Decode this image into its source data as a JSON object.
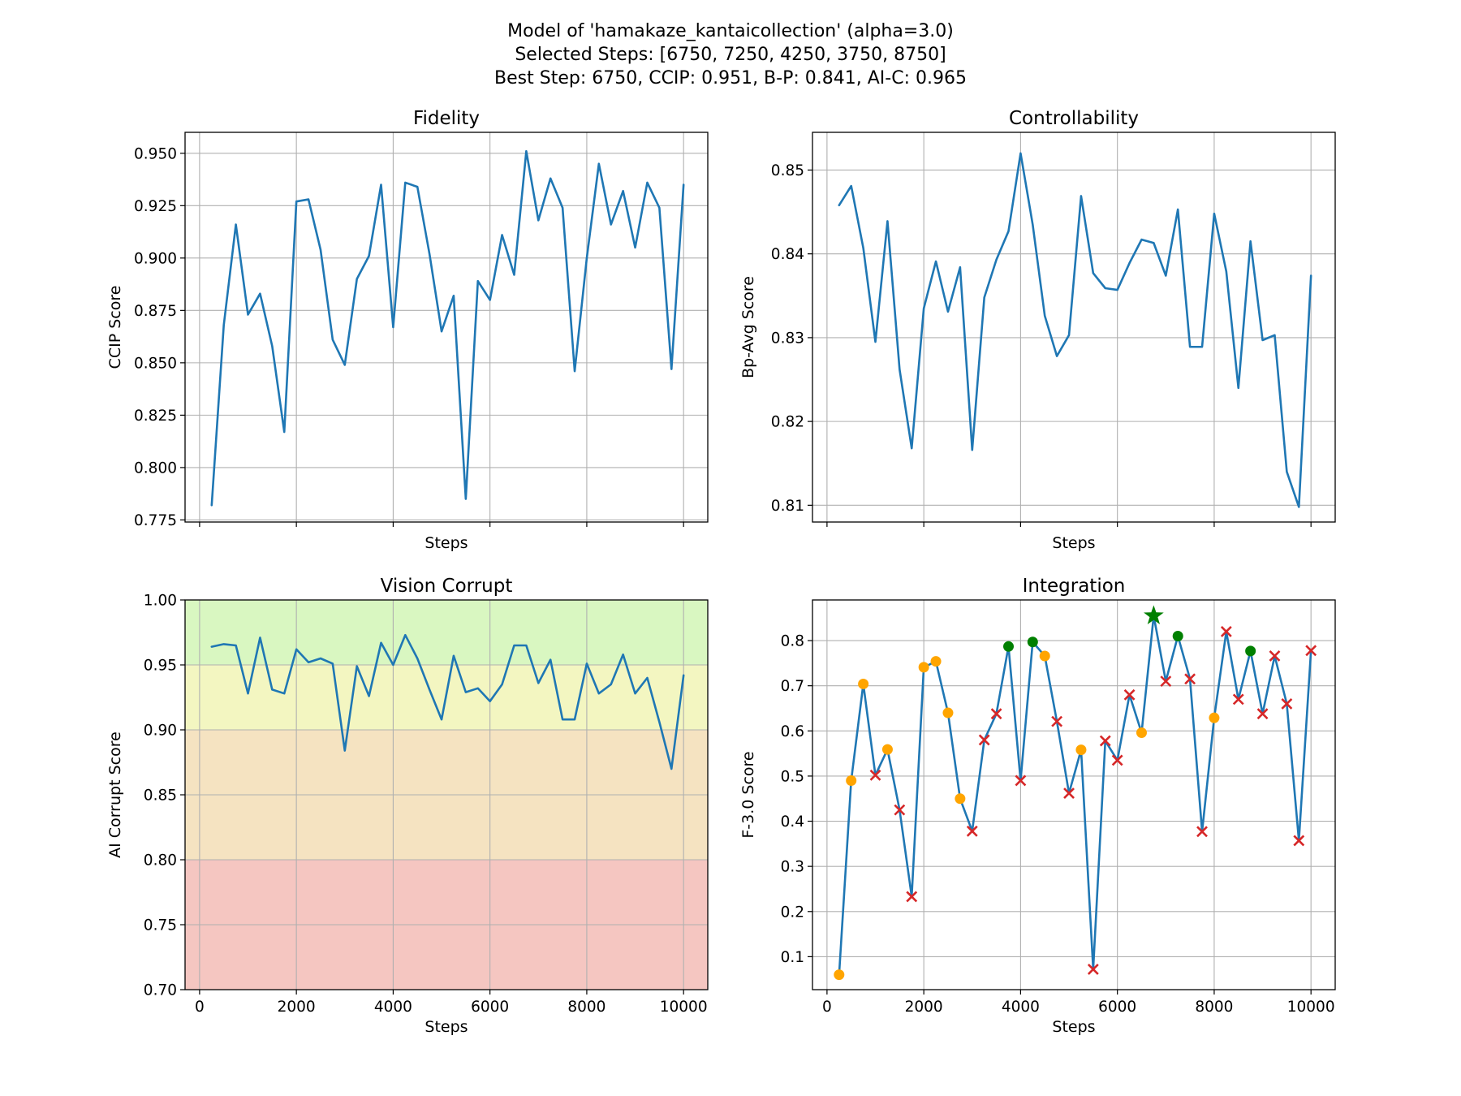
{
  "figure": {
    "title_lines": [
      "Model of 'hamakaze_kantaicollection' (alpha=3.0)",
      "Selected Steps: [6750, 7250, 4250, 3750, 8750]",
      "Best Step: 6750, CCIP: 0.951, B-P: 0.841, AI-C: 0.965"
    ]
  },
  "colors": {
    "line": "#1f77b4",
    "grid": "#b0b0b0",
    "marker_orange": "#ffa500",
    "marker_green": "#008000",
    "marker_red": "#d62728",
    "band_green": "#d9f7c1",
    "band_yellow": "#f3f6c1",
    "band_orange": "#f5e3c1",
    "band_red": "#f5c6c1"
  },
  "chart_data": [
    {
      "id": "fidelity",
      "type": "line",
      "title": "Fidelity",
      "xlabel": "Steps",
      "ylabel": "CCIP Score",
      "xlim": [
        -300,
        10500
      ],
      "ylim": [
        0.774,
        0.96
      ],
      "xticks": [
        0,
        2000,
        4000,
        6000,
        8000,
        10000
      ],
      "show_xtick_labels": false,
      "yticks": [
        0.775,
        0.8,
        0.825,
        0.85,
        0.875,
        0.9,
        0.925,
        0.95
      ],
      "ytick_labels": [
        "0.775",
        "0.800",
        "0.825",
        "0.850",
        "0.875",
        "0.900",
        "0.925",
        "0.950"
      ],
      "grid": true,
      "x": [
        250,
        500,
        750,
        1000,
        1250,
        1500,
        1750,
        2000,
        2250,
        2500,
        2750,
        3000,
        3250,
        3500,
        3750,
        4000,
        4250,
        4500,
        4750,
        5000,
        5250,
        5500,
        5750,
        6000,
        6250,
        6500,
        6750,
        7000,
        7250,
        7500,
        7750,
        8000,
        8250,
        8500,
        8750,
        9000,
        9250,
        9500,
        9750,
        10000
      ],
      "y": [
        0.782,
        0.868,
        0.916,
        0.873,
        0.883,
        0.858,
        0.817,
        0.927,
        0.928,
        0.904,
        0.861,
        0.849,
        0.89,
        0.901,
        0.935,
        0.867,
        0.936,
        0.934,
        0.902,
        0.865,
        0.882,
        0.785,
        0.889,
        0.88,
        0.911,
        0.892,
        0.951,
        0.918,
        0.938,
        0.924,
        0.846,
        0.9,
        0.945,
        0.916,
        0.932,
        0.905,
        0.936,
        0.924,
        0.847,
        0.935
      ]
    },
    {
      "id": "controllability",
      "type": "line",
      "title": "Controllability",
      "xlabel": "Steps",
      "ylabel": "Bp-Avg Score",
      "xlim": [
        -300,
        10500
      ],
      "ylim": [
        0.808,
        0.8545
      ],
      "xticks": [
        0,
        2000,
        4000,
        6000,
        8000,
        10000
      ],
      "show_xtick_labels": false,
      "yticks": [
        0.81,
        0.82,
        0.83,
        0.84,
        0.85
      ],
      "ytick_labels": [
        "0.81",
        "0.82",
        "0.83",
        "0.84",
        "0.85"
      ],
      "grid": true,
      "x": [
        250,
        500,
        750,
        1000,
        1250,
        1500,
        1750,
        2000,
        2250,
        2500,
        2750,
        3000,
        3250,
        3500,
        3750,
        4000,
        4250,
        4500,
        4750,
        5000,
        5250,
        5500,
        5750,
        6000,
        6250,
        6500,
        6750,
        7000,
        7250,
        7500,
        7750,
        8000,
        8250,
        8500,
        8750,
        9000,
        9250,
        9500,
        9750,
        10000
      ],
      "y": [
        0.8458,
        0.8481,
        0.8407,
        0.8295,
        0.8439,
        0.8262,
        0.8168,
        0.8335,
        0.8391,
        0.8331,
        0.8384,
        0.8166,
        0.8348,
        0.8393,
        0.8427,
        0.852,
        0.8435,
        0.8326,
        0.8278,
        0.8303,
        0.8469,
        0.8377,
        0.8359,
        0.8357,
        0.8389,
        0.8417,
        0.8413,
        0.8374,
        0.8453,
        0.8289,
        0.8289,
        0.8448,
        0.8379,
        0.824,
        0.8415,
        0.8297,
        0.8303,
        0.814,
        0.8098,
        0.8374
      ]
    },
    {
      "id": "vision-corrupt",
      "type": "line",
      "title": "Vision Corrupt",
      "xlabel": "Steps",
      "ylabel": "AI Corrupt Score",
      "xlim": [
        -300,
        10500
      ],
      "ylim": [
        0.7,
        1.0
      ],
      "xticks": [
        0,
        2000,
        4000,
        6000,
        8000,
        10000
      ],
      "xtick_labels": [
        "0",
        "2000",
        "4000",
        "6000",
        "8000",
        "10000"
      ],
      "show_xtick_labels": true,
      "yticks": [
        0.7,
        0.75,
        0.8,
        0.85,
        0.9,
        0.95,
        1.0
      ],
      "ytick_labels": [
        "0.70",
        "0.75",
        "0.80",
        "0.85",
        "0.90",
        "0.95",
        "1.00"
      ],
      "grid": true,
      "bands": [
        {
          "from": 0.95,
          "to": 1.0,
          "color": "band_green"
        },
        {
          "from": 0.9,
          "to": 0.95,
          "color": "band_yellow"
        },
        {
          "from": 0.8,
          "to": 0.9,
          "color": "band_orange"
        },
        {
          "from": 0.7,
          "to": 0.8,
          "color": "band_red"
        }
      ],
      "x": [
        250,
        500,
        750,
        1000,
        1250,
        1500,
        1750,
        2000,
        2250,
        2500,
        2750,
        3000,
        3250,
        3500,
        3750,
        4000,
        4250,
        4500,
        4750,
        5000,
        5250,
        5500,
        5750,
        6000,
        6250,
        6500,
        6750,
        7000,
        7250,
        7500,
        7750,
        8000,
        8250,
        8500,
        8750,
        9000,
        9250,
        9500,
        9750,
        10000
      ],
      "y": [
        0.964,
        0.966,
        0.965,
        0.928,
        0.971,
        0.931,
        0.928,
        0.962,
        0.952,
        0.955,
        0.951,
        0.884,
        0.949,
        0.926,
        0.967,
        0.95,
        0.973,
        0.955,
        0.931,
        0.908,
        0.957,
        0.929,
        0.932,
        0.922,
        0.935,
        0.965,
        0.965,
        0.936,
        0.954,
        0.908,
        0.908,
        0.951,
        0.928,
        0.935,
        0.958,
        0.928,
        0.94,
        0.906,
        0.87,
        0.942
      ]
    },
    {
      "id": "integration",
      "type": "line",
      "title": "Integration",
      "xlabel": "Steps",
      "ylabel": "F-3.0 Score",
      "xlim": [
        -300,
        10500
      ],
      "ylim": [
        0.027,
        0.89
      ],
      "xticks": [
        0,
        2000,
        4000,
        6000,
        8000,
        10000
      ],
      "xtick_labels": [
        "0",
        "2000",
        "4000",
        "6000",
        "8000",
        "10000"
      ],
      "show_xtick_labels": true,
      "yticks": [
        0.1,
        0.2,
        0.3,
        0.4,
        0.5,
        0.6,
        0.7,
        0.8
      ],
      "ytick_labels": [
        "0.1",
        "0.2",
        "0.3",
        "0.4",
        "0.5",
        "0.6",
        "0.7",
        "0.8"
      ],
      "grid": true,
      "x": [
        250,
        500,
        750,
        1000,
        1250,
        1500,
        1750,
        2000,
        2250,
        2500,
        2750,
        3000,
        3250,
        3500,
        3750,
        4000,
        4250,
        4500,
        4750,
        5000,
        5250,
        5500,
        5750,
        6000,
        6250,
        6500,
        6750,
        7000,
        7250,
        7500,
        7750,
        8000,
        8250,
        8500,
        8750,
        9000,
        9250,
        9500,
        9750,
        10000
      ],
      "y": [
        0.06,
        0.49,
        0.704,
        0.502,
        0.559,
        0.425,
        0.233,
        0.741,
        0.754,
        0.64,
        0.45,
        0.378,
        0.58,
        0.638,
        0.787,
        0.49,
        0.797,
        0.766,
        0.621,
        0.462,
        0.558,
        0.072,
        0.578,
        0.535,
        0.68,
        0.596,
        0.855,
        0.71,
        0.81,
        0.715,
        0.377,
        0.629,
        0.82,
        0.67,
        0.777,
        0.638,
        0.766,
        0.66,
        0.357,
        0.778
      ],
      "markers": [
        "o",
        "o",
        "o",
        "x",
        "o",
        "x",
        "x",
        "o",
        "o",
        "o",
        "o",
        "x",
        "x",
        "x",
        "g",
        "x",
        "g",
        "o",
        "x",
        "x",
        "o",
        "x",
        "x",
        "x",
        "x",
        "o",
        "star",
        "x",
        "g",
        "x",
        "x",
        "o",
        "x",
        "x",
        "g",
        "x",
        "x",
        "x",
        "x",
        "x"
      ],
      "marker_legend": {
        "o": "marker_orange",
        "x": "marker_red",
        "g": "marker_green",
        "star": "marker_green"
      }
    }
  ]
}
